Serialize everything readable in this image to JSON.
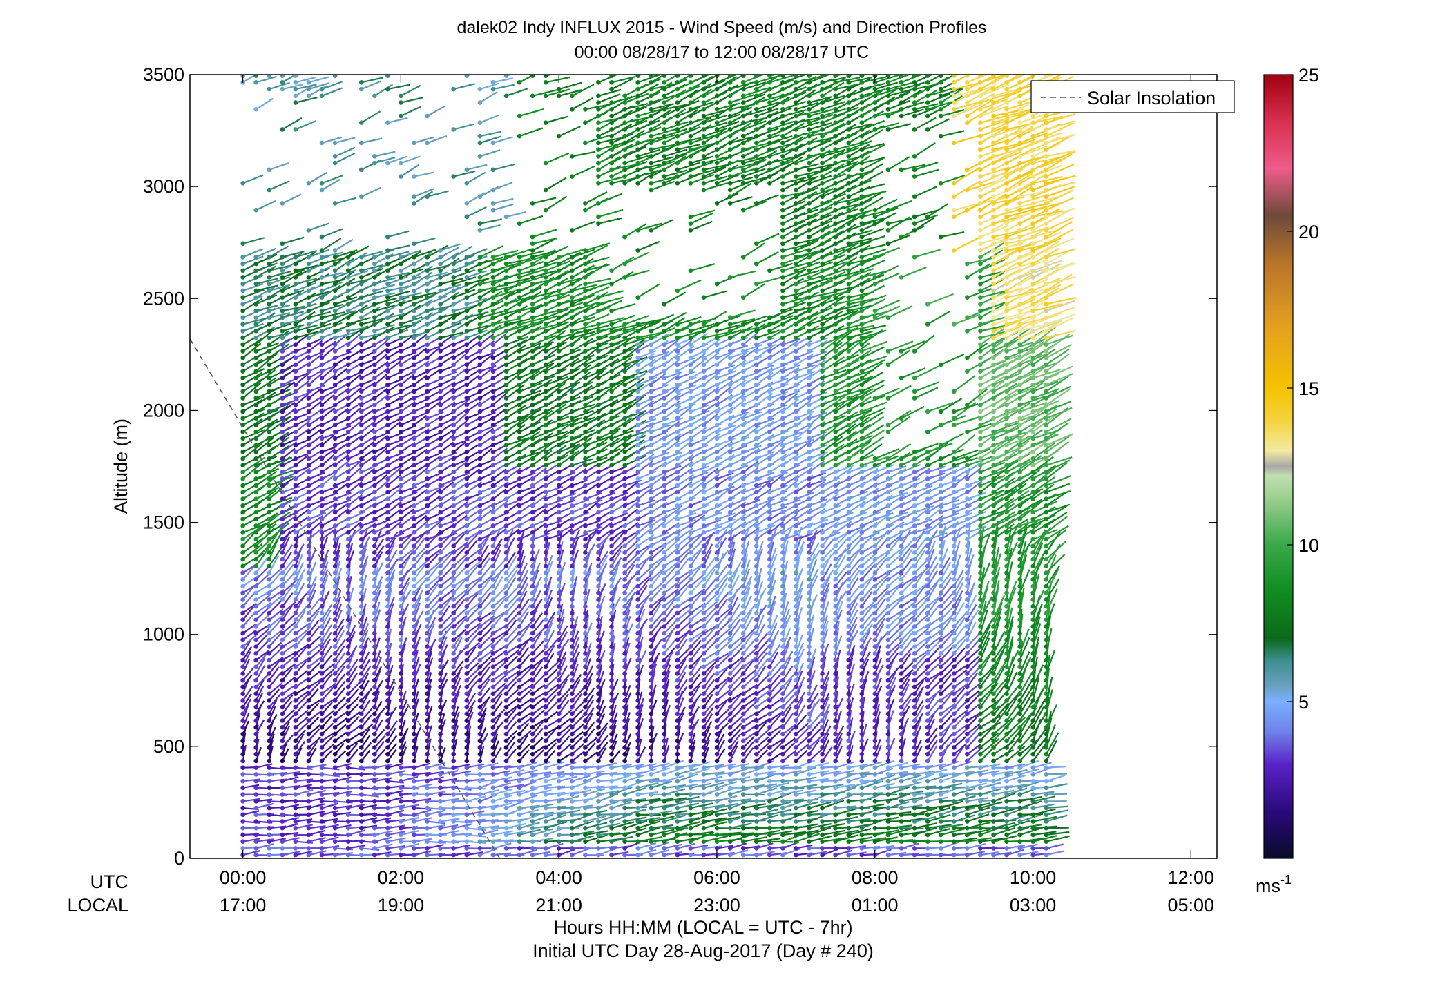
{
  "chart_data": {
    "type": "wind-barb-profile",
    "title_line1": "dalek02 Indy INFLUX 2015 - Wind Speed (m/s) and Direction Profiles",
    "title_line2": "00:00 08/28/17 to 12:00 08/28/17  UTC",
    "ylabel": "Altitude (m)",
    "xlabel_line1": "Hours HH:MM  (LOCAL = UTC - 7hr)",
    "xlabel_line2": "Initial UTC Day 28-Aug-2017 (Day # 240)",
    "utc_row_label": "UTC",
    "local_row_label": "LOCAL",
    "ylim": [
      0,
      3500
    ],
    "xlim_hours": [
      -0.67,
      12.33
    ],
    "yticks": [
      0,
      500,
      1000,
      1500,
      2000,
      2500,
      3000,
      3500
    ],
    "ytick_labels": [
      "0",
      "500",
      "1000",
      "1500",
      "2000",
      "2500",
      "3000",
      "3500"
    ],
    "xticks_hours": [
      0,
      2,
      4,
      6,
      8,
      10,
      12
    ],
    "xtick_utc_labels": [
      "00:00",
      "02:00",
      "04:00",
      "06:00",
      "08:00",
      "10:00",
      "12:00"
    ],
    "xtick_local_labels": [
      "17:00",
      "19:00",
      "21:00",
      "23:00",
      "01:00",
      "03:00",
      "05:00"
    ],
    "legend": {
      "label": "Solar Insolation",
      "placement": "top-right"
    },
    "solar_insolation_line": {
      "hours": [
        -0.67,
        3.25
      ],
      "altitude": [
        2320,
        0
      ]
    },
    "colorbar": {
      "range": [
        0,
        25
      ],
      "ticks": [
        5,
        10,
        15,
        20,
        25
      ],
      "tick_labels": [
        "5",
        "10",
        "15",
        "20",
        "25"
      ],
      "unit_base": "ms",
      "unit_sup": "-1",
      "stops": [
        {
          "v": 0,
          "color": "#0a0a2a"
        },
        {
          "v": 1.5,
          "color": "#2a0a7a"
        },
        {
          "v": 3,
          "color": "#5a22c8"
        },
        {
          "v": 4,
          "color": "#6f7fe8"
        },
        {
          "v": 5,
          "color": "#7ab0ff"
        },
        {
          "v": 5.5,
          "color": "#6aa0c0"
        },
        {
          "v": 6.3,
          "color": "#3d8f8f"
        },
        {
          "v": 7,
          "color": "#0b6a1a"
        },
        {
          "v": 8.5,
          "color": "#0f8c20"
        },
        {
          "v": 10,
          "color": "#3aa84a"
        },
        {
          "v": 11.5,
          "color": "#9ccf90"
        },
        {
          "v": 12.2,
          "color": "#c0e0b0"
        },
        {
          "v": 12.5,
          "color": "#a8a8a8"
        },
        {
          "v": 13,
          "color": "#f2eaa0"
        },
        {
          "v": 14,
          "color": "#f5d23a"
        },
        {
          "v": 15,
          "color": "#f3c300"
        },
        {
          "v": 17,
          "color": "#e39f20"
        },
        {
          "v": 19,
          "color": "#b8742a"
        },
        {
          "v": 20.5,
          "color": "#6e4a3a"
        },
        {
          "v": 22,
          "color": "#ee5c8a"
        },
        {
          "v": 23.5,
          "color": "#d83050"
        },
        {
          "v": 25,
          "color": "#a00010"
        }
      ]
    },
    "profiles": {
      "first_hour": 0,
      "hour_step": 0.1667,
      "count": 62,
      "altitude_step_m": 30,
      "max_altitude_m": 3500
    }
  }
}
